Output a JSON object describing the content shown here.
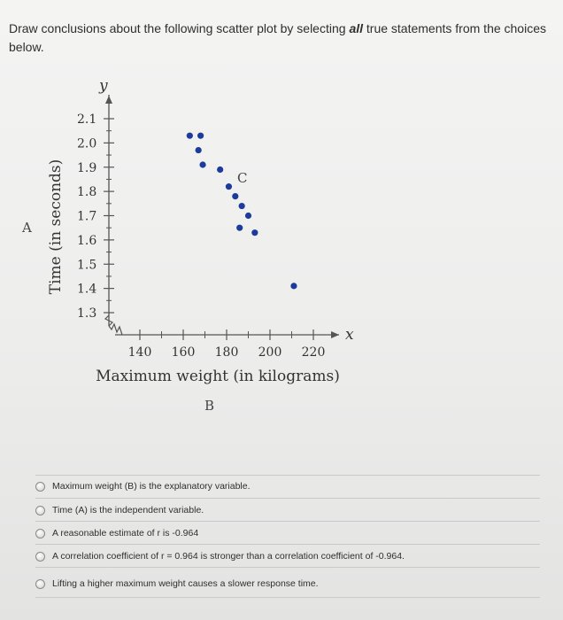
{
  "prompt": {
    "before": "Draw conclusions about the following scatter plot by selecting ",
    "emph": "all",
    "after": " true statements from the choices below."
  },
  "chart_data": {
    "type": "scatter",
    "xlabel": "Maximum weight (in kilograms)",
    "ylabel": "Time (in seconds)",
    "x_axis_letter": "x",
    "y_axis_letter": "y",
    "x_ticks": [
      "140",
      "160",
      "180",
      "200",
      "220"
    ],
    "y_ticks": [
      "2.1",
      "2.0",
      "1.9",
      "1.8",
      "1.7",
      "1.6",
      "1.5",
      "1.4",
      "1.3"
    ],
    "xlim": [
      130,
      230
    ],
    "ylim": [
      1.3,
      2.1
    ],
    "points": [
      {
        "x": 163,
        "y": 2.03
      },
      {
        "x": 168,
        "y": 2.03
      },
      {
        "x": 167,
        "y": 1.97
      },
      {
        "x": 169,
        "y": 1.91
      },
      {
        "x": 177,
        "y": 1.89
      },
      {
        "x": 181,
        "y": 1.82
      },
      {
        "x": 184,
        "y": 1.78
      },
      {
        "x": 187,
        "y": 1.74
      },
      {
        "x": 190,
        "y": 1.7
      },
      {
        "x": 186,
        "y": 1.65
      },
      {
        "x": 193,
        "y": 1.63
      },
      {
        "x": 211,
        "y": 1.41
      }
    ]
  },
  "labels": {
    "a": "A",
    "b": "B",
    "c": "C"
  },
  "choices": [
    {
      "label": "Maximum weight (B) is the explanatory variable."
    },
    {
      "label": "Time (A) is the independent variable."
    },
    {
      "label": "A reasonable estimate of r is -0.964"
    },
    {
      "label": "A correlation coefficient of r = 0.964 is stronger than a correlation coefficient of -0.964."
    },
    {
      "label": "Lifting a higher maximum weight causes a slower response time."
    }
  ],
  "colors": {
    "dot": "#1d3b9a",
    "axis": "#555555"
  }
}
